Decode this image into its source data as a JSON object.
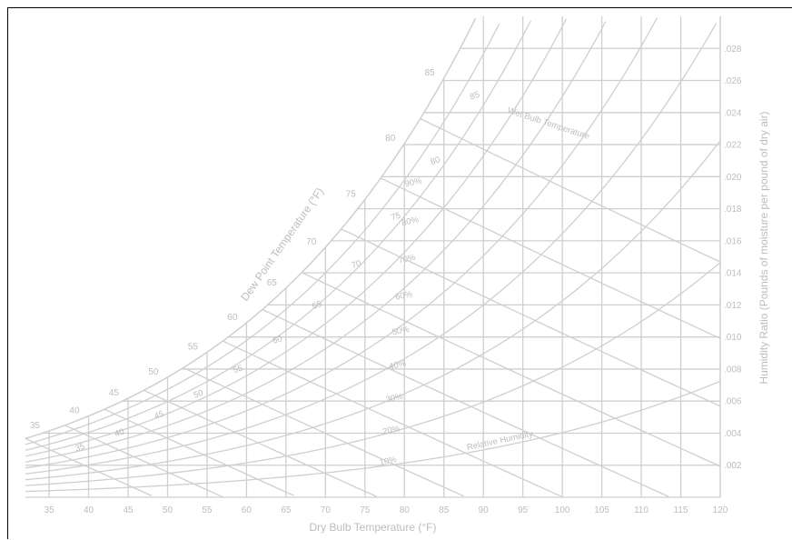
{
  "colors": {
    "grid": "#cfcfcf",
    "text": "#bdbdbd",
    "frame": "#000000",
    "background": "#ffffff"
  },
  "chart_data": {
    "type": "line",
    "title": "",
    "xlabel": "Dry Bulb Temperature (°F)",
    "ylabel": "Humidity Ratio (Pounds of moisture per pound of dry air)",
    "dewpoint_label": "Dew Point Temperature (°F)",
    "wetbulb_label": "Wet Bulb Temperature",
    "rh_label": "Relative Humidity",
    "xlim": [
      32,
      120
    ],
    "ylim": [
      0,
      0.03
    ],
    "x_ticks": [
      "35",
      "40",
      "45",
      "50",
      "55",
      "60",
      "65",
      "70",
      "75",
      "80",
      "85",
      "90",
      "95",
      "100",
      "105",
      "110",
      "115",
      "120"
    ],
    "y_ticks": [
      ".002",
      ".004",
      ".006",
      ".008",
      ".010",
      ".012",
      ".014",
      ".016",
      ".018",
      ".020",
      ".022",
      ".024",
      ".026",
      ".028"
    ],
    "x_tick_values": [
      35,
      40,
      45,
      50,
      55,
      60,
      65,
      70,
      75,
      80,
      85,
      90,
      95,
      100,
      105,
      110,
      115,
      120
    ],
    "y_tick_values": [
      0.002,
      0.004,
      0.006,
      0.008,
      0.01,
      0.012,
      0.014,
      0.016,
      0.018,
      0.02,
      0.022,
      0.024,
      0.026,
      0.028
    ],
    "dewpoint_labels": [
      "35",
      "40",
      "45",
      "50",
      "55",
      "60",
      "65",
      "70",
      "75",
      "80",
      "85"
    ],
    "dewpoint_values": [
      35,
      40,
      45,
      50,
      55,
      60,
      65,
      70,
      75,
      80,
      85
    ],
    "wetbulb_labels": [
      "35",
      "40",
      "45",
      "50",
      "55",
      "60",
      "65",
      "70",
      "75",
      "80",
      "85"
    ],
    "wetbulb_values": [
      35,
      40,
      45,
      50,
      55,
      60,
      65,
      70,
      75,
      80,
      85
    ],
    "rh_labels": [
      "10%",
      "20%",
      "30%",
      "40%",
      "50%",
      "60%",
      "70%",
      "80%",
      "90%"
    ],
    "rh_values": [
      10,
      20,
      30,
      40,
      50,
      60,
      70,
      80,
      90
    ],
    "wetbulb_range": [
      32,
      85
    ],
    "grid": true
  }
}
